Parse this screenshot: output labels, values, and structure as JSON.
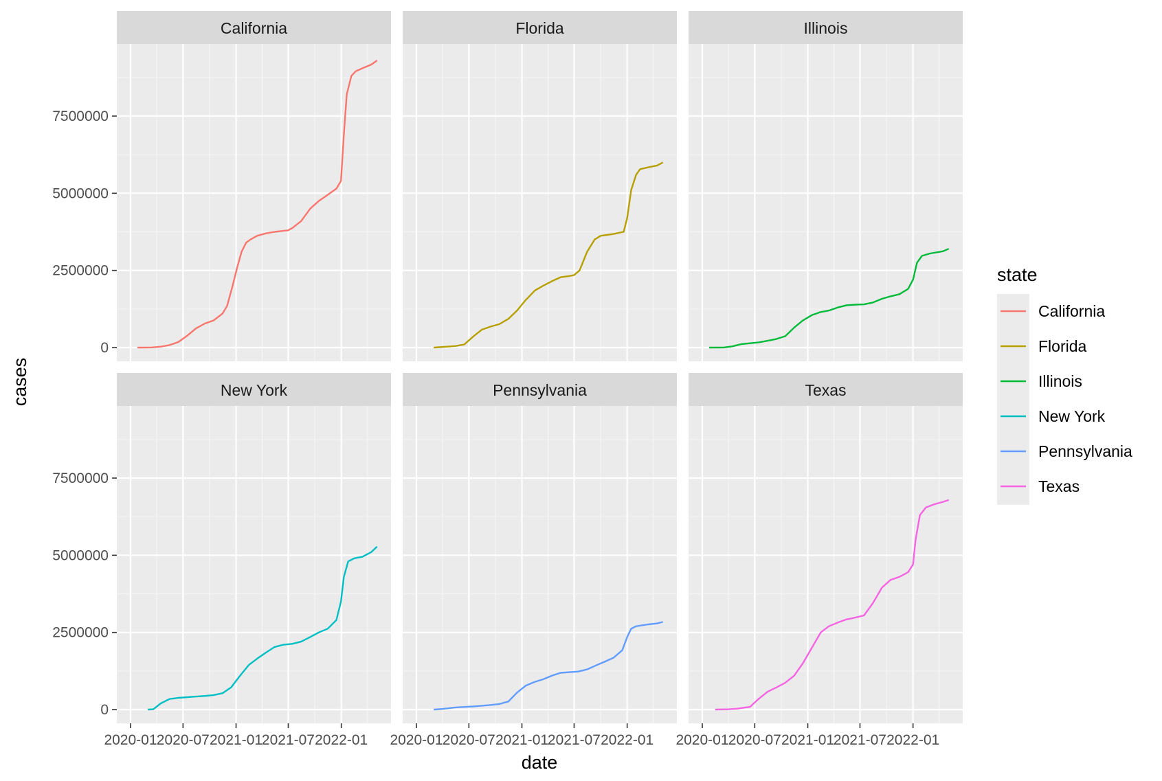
{
  "chart_data": {
    "type": "line",
    "layout": "facet_wrap",
    "xlabel": "date",
    "ylabel": "cases",
    "x_ticks": [
      "2020-01",
      "2020-07",
      "2021-01",
      "2021-07",
      "2022-01"
    ],
    "x_range": [
      "2020-01-01",
      "2022-05-01"
    ],
    "y_ticks": [
      0,
      2500000,
      5000000,
      7500000
    ],
    "y_tick_labels": [
      "0",
      "2500000",
      "5000000",
      "7500000"
    ],
    "ylim": [
      0,
      9750000
    ],
    "legend": {
      "title": "state",
      "placement": "right"
    },
    "grid": true,
    "series": [
      {
        "name": "California",
        "color": "#F8766D",
        "points": [
          [
            "2020-01-25",
            0
          ],
          [
            "2020-03-15",
            5000
          ],
          [
            "2020-04-15",
            30000
          ],
          [
            "2020-05-15",
            80000
          ],
          [
            "2020-06-15",
            180000
          ],
          [
            "2020-07-15",
            380000
          ],
          [
            "2020-08-15",
            620000
          ],
          [
            "2020-09-15",
            780000
          ],
          [
            "2020-10-15",
            880000
          ],
          [
            "2020-11-15",
            1100000
          ],
          [
            "2020-12-01",
            1350000
          ],
          [
            "2020-12-20",
            2000000
          ],
          [
            "2021-01-05",
            2600000
          ],
          [
            "2021-01-20",
            3100000
          ],
          [
            "2021-02-05",
            3400000
          ],
          [
            "2021-02-20",
            3500000
          ],
          [
            "2021-03-15",
            3620000
          ],
          [
            "2021-04-15",
            3700000
          ],
          [
            "2021-05-15",
            3750000
          ],
          [
            "2021-06-30",
            3800000
          ],
          [
            "2021-07-15",
            3870000
          ],
          [
            "2021-08-15",
            4100000
          ],
          [
            "2021-09-15",
            4500000
          ],
          [
            "2021-10-15",
            4750000
          ],
          [
            "2021-11-15",
            4950000
          ],
          [
            "2021-12-15",
            5150000
          ],
          [
            "2021-12-31",
            5400000
          ],
          [
            "2022-01-10",
            6900000
          ],
          [
            "2022-01-20",
            8200000
          ],
          [
            "2022-02-05",
            8800000
          ],
          [
            "2022-02-20",
            8950000
          ],
          [
            "2022-03-15",
            9050000
          ],
          [
            "2022-04-15",
            9170000
          ],
          [
            "2022-05-05",
            9300000
          ]
        ]
      },
      {
        "name": "Florida",
        "color": "#B79F00",
        "points": [
          [
            "2020-03-01",
            0
          ],
          [
            "2020-04-15",
            30000
          ],
          [
            "2020-05-15",
            50000
          ],
          [
            "2020-06-15",
            100000
          ],
          [
            "2020-07-15",
            350000
          ],
          [
            "2020-08-15",
            580000
          ],
          [
            "2020-09-15",
            680000
          ],
          [
            "2020-10-15",
            760000
          ],
          [
            "2020-11-15",
            930000
          ],
          [
            "2020-12-15",
            1200000
          ],
          [
            "2021-01-15",
            1550000
          ],
          [
            "2021-02-15",
            1850000
          ],
          [
            "2021-03-15",
            2000000
          ],
          [
            "2021-04-15",
            2150000
          ],
          [
            "2021-05-15",
            2280000
          ],
          [
            "2021-06-15",
            2320000
          ],
          [
            "2021-07-01",
            2350000
          ],
          [
            "2021-07-20",
            2500000
          ],
          [
            "2021-08-15",
            3100000
          ],
          [
            "2021-09-10",
            3500000
          ],
          [
            "2021-10-01",
            3620000
          ],
          [
            "2021-11-15",
            3680000
          ],
          [
            "2021-12-20",
            3750000
          ],
          [
            "2022-01-01",
            4200000
          ],
          [
            "2022-01-15",
            5100000
          ],
          [
            "2022-02-01",
            5600000
          ],
          [
            "2022-02-15",
            5780000
          ],
          [
            "2022-03-15",
            5840000
          ],
          [
            "2022-04-15",
            5900000
          ],
          [
            "2022-05-05",
            6000000
          ]
        ]
      },
      {
        "name": "Illinois",
        "color": "#00BA38",
        "points": [
          [
            "2020-01-25",
            0
          ],
          [
            "2020-03-15",
            3000
          ],
          [
            "2020-04-15",
            40000
          ],
          [
            "2020-05-15",
            110000
          ],
          [
            "2020-06-15",
            140000
          ],
          [
            "2020-07-15",
            170000
          ],
          [
            "2020-08-15",
            220000
          ],
          [
            "2020-09-15",
            280000
          ],
          [
            "2020-10-15",
            370000
          ],
          [
            "2020-11-15",
            650000
          ],
          [
            "2020-12-15",
            880000
          ],
          [
            "2021-01-15",
            1050000
          ],
          [
            "2021-02-15",
            1150000
          ],
          [
            "2021-03-15",
            1200000
          ],
          [
            "2021-04-15",
            1300000
          ],
          [
            "2021-05-15",
            1370000
          ],
          [
            "2021-06-15",
            1390000
          ],
          [
            "2021-07-15",
            1400000
          ],
          [
            "2021-08-15",
            1460000
          ],
          [
            "2021-09-15",
            1580000
          ],
          [
            "2021-10-15",
            1660000
          ],
          [
            "2021-11-15",
            1730000
          ],
          [
            "2021-12-15",
            1900000
          ],
          [
            "2022-01-01",
            2200000
          ],
          [
            "2022-01-15",
            2750000
          ],
          [
            "2022-02-01",
            2970000
          ],
          [
            "2022-03-01",
            3050000
          ],
          [
            "2022-04-15",
            3120000
          ],
          [
            "2022-05-05",
            3200000
          ]
        ]
      },
      {
        "name": "New York",
        "color": "#00BFC4",
        "points": [
          [
            "2020-03-01",
            0
          ],
          [
            "2020-03-20",
            10000
          ],
          [
            "2020-04-15",
            200000
          ],
          [
            "2020-05-15",
            340000
          ],
          [
            "2020-06-15",
            380000
          ],
          [
            "2020-07-15",
            400000
          ],
          [
            "2020-08-15",
            420000
          ],
          [
            "2020-09-15",
            440000
          ],
          [
            "2020-10-15",
            470000
          ],
          [
            "2020-11-15",
            530000
          ],
          [
            "2020-12-15",
            720000
          ],
          [
            "2021-01-15",
            1100000
          ],
          [
            "2021-02-15",
            1450000
          ],
          [
            "2021-03-15",
            1650000
          ],
          [
            "2021-04-15",
            1850000
          ],
          [
            "2021-05-15",
            2030000
          ],
          [
            "2021-06-15",
            2100000
          ],
          [
            "2021-07-15",
            2130000
          ],
          [
            "2021-08-15",
            2200000
          ],
          [
            "2021-09-15",
            2350000
          ],
          [
            "2021-10-15",
            2500000
          ],
          [
            "2021-11-15",
            2620000
          ],
          [
            "2021-12-15",
            2900000
          ],
          [
            "2021-12-31",
            3500000
          ],
          [
            "2022-01-10",
            4300000
          ],
          [
            "2022-01-25",
            4800000
          ],
          [
            "2022-02-15",
            4900000
          ],
          [
            "2022-03-15",
            4950000
          ],
          [
            "2022-04-15",
            5100000
          ],
          [
            "2022-05-05",
            5280000
          ]
        ]
      },
      {
        "name": "Pennsylvania",
        "color": "#619CFF",
        "points": [
          [
            "2020-03-01",
            0
          ],
          [
            "2020-04-01",
            20000
          ],
          [
            "2020-05-15",
            70000
          ],
          [
            "2020-06-15",
            85000
          ],
          [
            "2020-07-15",
            100000
          ],
          [
            "2020-08-15",
            125000
          ],
          [
            "2020-09-15",
            150000
          ],
          [
            "2020-10-15",
            180000
          ],
          [
            "2020-11-15",
            260000
          ],
          [
            "2020-12-15",
            550000
          ],
          [
            "2021-01-15",
            780000
          ],
          [
            "2021-02-15",
            900000
          ],
          [
            "2021-03-15",
            980000
          ],
          [
            "2021-04-15",
            1100000
          ],
          [
            "2021-05-15",
            1190000
          ],
          [
            "2021-06-15",
            1210000
          ],
          [
            "2021-07-15",
            1230000
          ],
          [
            "2021-08-15",
            1300000
          ],
          [
            "2021-09-15",
            1430000
          ],
          [
            "2021-10-15",
            1550000
          ],
          [
            "2021-11-15",
            1680000
          ],
          [
            "2021-12-15",
            1920000
          ],
          [
            "2022-01-01",
            2350000
          ],
          [
            "2022-01-15",
            2620000
          ],
          [
            "2022-02-01",
            2700000
          ],
          [
            "2022-03-15",
            2760000
          ],
          [
            "2022-04-15",
            2790000
          ],
          [
            "2022-05-05",
            2840000
          ]
        ]
      },
      {
        "name": "Texas",
        "color": "#F564E3",
        "points": [
          [
            "2020-02-15",
            0
          ],
          [
            "2020-04-01",
            10000
          ],
          [
            "2020-05-01",
            30000
          ],
          [
            "2020-06-15",
            90000
          ],
          [
            "2020-07-15",
            350000
          ],
          [
            "2020-08-15",
            580000
          ],
          [
            "2020-09-15",
            720000
          ],
          [
            "2020-10-15",
            870000
          ],
          [
            "2020-11-15",
            1100000
          ],
          [
            "2020-12-15",
            1500000
          ],
          [
            "2021-01-15",
            2000000
          ],
          [
            "2021-02-15",
            2500000
          ],
          [
            "2021-03-15",
            2700000
          ],
          [
            "2021-04-15",
            2820000
          ],
          [
            "2021-05-15",
            2920000
          ],
          [
            "2021-06-15",
            2980000
          ],
          [
            "2021-07-15",
            3050000
          ],
          [
            "2021-08-15",
            3450000
          ],
          [
            "2021-09-15",
            3950000
          ],
          [
            "2021-10-15",
            4200000
          ],
          [
            "2021-11-15",
            4300000
          ],
          [
            "2021-12-15",
            4450000
          ],
          [
            "2022-01-01",
            4700000
          ],
          [
            "2022-01-10",
            5500000
          ],
          [
            "2022-01-25",
            6300000
          ],
          [
            "2022-02-15",
            6550000
          ],
          [
            "2022-03-15",
            6650000
          ],
          [
            "2022-04-15",
            6730000
          ],
          [
            "2022-05-05",
            6790000
          ]
        ]
      }
    ]
  }
}
